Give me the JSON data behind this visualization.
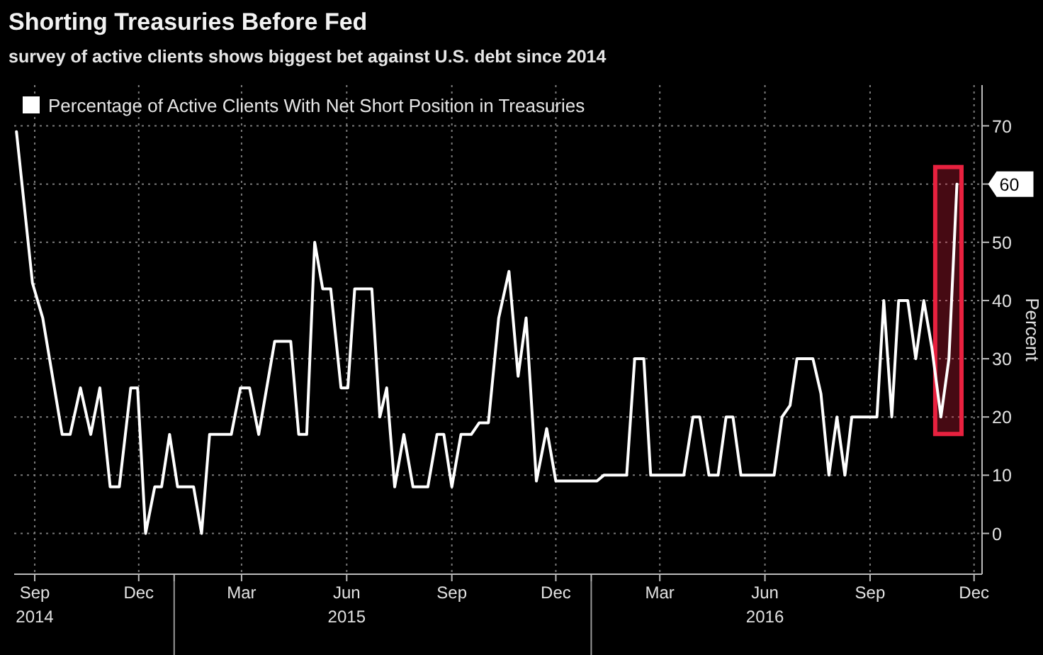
{
  "chart_data": {
    "type": "line",
    "title": "Shorting Treasuries Before Fed",
    "subtitle": "survey of active clients shows biggest bet against U.S. debt since 2014",
    "ylabel": "Percent",
    "x": [
      "2014-08-16",
      "2014-08-30",
      "2014-09-08",
      "2014-09-25",
      "2014-10-02",
      "2014-10-11",
      "2014-10-20",
      "2014-10-28",
      "2014-11-06",
      "2014-11-14",
      "2014-11-24",
      "2014-11-30",
      "2014-12-07",
      "2014-12-15",
      "2014-12-21",
      "2014-12-28",
      "2015-01-04",
      "2015-01-18",
      "2015-01-25",
      "2015-02-01",
      "2015-02-20",
      "2015-02-28",
      "2015-03-08",
      "2015-03-16",
      "2015-03-30",
      "2015-04-13",
      "2015-04-20",
      "2015-04-27",
      "2015-05-04",
      "2015-05-11",
      "2015-05-18",
      "2015-05-27",
      "2015-06-02",
      "2015-06-08",
      "2015-06-23",
      "2015-06-30",
      "2015-07-06",
      "2015-07-13",
      "2015-07-21",
      "2015-07-29",
      "2015-08-11",
      "2015-08-19",
      "2015-08-25",
      "2015-09-01",
      "2015-09-09",
      "2015-09-18",
      "2015-09-25",
      "2015-10-03",
      "2015-10-12",
      "2015-10-21",
      "2015-10-29",
      "2015-11-05",
      "2015-11-14",
      "2015-11-23",
      "2015-12-01",
      "2016-01-06",
      "2016-01-12",
      "2016-02-01",
      "2016-02-08",
      "2016-02-16",
      "2016-02-22",
      "2016-03-22",
      "2016-03-30",
      "2016-04-05",
      "2016-04-13",
      "2016-04-21",
      "2016-04-28",
      "2016-05-04",
      "2016-05-11",
      "2016-06-09",
      "2016-06-16",
      "2016-06-23",
      "2016-06-29",
      "2016-07-13",
      "2016-07-20",
      "2016-07-27",
      "2016-08-03",
      "2016-08-10",
      "2016-08-16",
      "2016-09-07",
      "2016-09-13",
      "2016-09-20",
      "2016-09-26",
      "2016-10-04",
      "2016-10-11",
      "2016-10-18",
      "2016-10-25",
      "2016-11-02",
      "2016-11-09",
      "2016-11-16"
    ],
    "series": [
      {
        "name": "Percentage of Active Clients With Net Short Position in Treasuries",
        "color": "#ffffff",
        "values": [
          69,
          43,
          37,
          17,
          17,
          25,
          17,
          25,
          8,
          8,
          25,
          25,
          0,
          8,
          8,
          17,
          8,
          8,
          0,
          17,
          17,
          25,
          25,
          17,
          33,
          33,
          17,
          17,
          50,
          42,
          42,
          25,
          25,
          42,
          42,
          20,
          25,
          8,
          17,
          8,
          8,
          17,
          17,
          8,
          17,
          17,
          19,
          19,
          37,
          45,
          27,
          37,
          9,
          18,
          9,
          9,
          10,
          10,
          30,
          30,
          10,
          10,
          20,
          20,
          10,
          10,
          20,
          20,
          10,
          10,
          20,
          22,
          30,
          30,
          24,
          10,
          20,
          10,
          20,
          20,
          40,
          20,
          40,
          40,
          30,
          40,
          32,
          20,
          30,
          60
        ]
      }
    ],
    "xlim": [
      "2014-08-14",
      "2016-12-08"
    ],
    "xticks": [
      {
        "value": "2014-09-01",
        "label": "Sep\n2014"
      },
      {
        "value": "2014-12-01",
        "label": "Dec"
      },
      {
        "value": "2015-01-01",
        "label": null
      },
      {
        "value": "2015-03-01",
        "label": "Mar"
      },
      {
        "value": "2015-06-01",
        "label": "Jun\n2015"
      },
      {
        "value": "2015-09-01",
        "label": "Sep"
      },
      {
        "value": "2015-12-01",
        "label": "Dec"
      },
      {
        "value": "2016-01-01",
        "label": null
      },
      {
        "value": "2016-03-01",
        "label": "Mar"
      },
      {
        "value": "2016-06-01",
        "label": "Jun\n2016"
      },
      {
        "value": "2016-09-01",
        "label": "Sep"
      },
      {
        "value": "2016-12-01",
        "label": "Dec"
      }
    ],
    "ylim": [
      -7,
      77
    ],
    "yticks": [
      0,
      10,
      20,
      30,
      40,
      50,
      {
        "value": 60,
        "label": null
      },
      70
    ],
    "grid": true,
    "legend": "top left",
    "line_style": "solid",
    "bands": [
      {
        "axis": "x",
        "from": "2016-10-28",
        "to": "2016-11-20",
        "color": "#e8213f"
      }
    ],
    "annotations": [
      {
        "text": "60",
        "x": "2016-11-16",
        "y": 60
      }
    ]
  }
}
